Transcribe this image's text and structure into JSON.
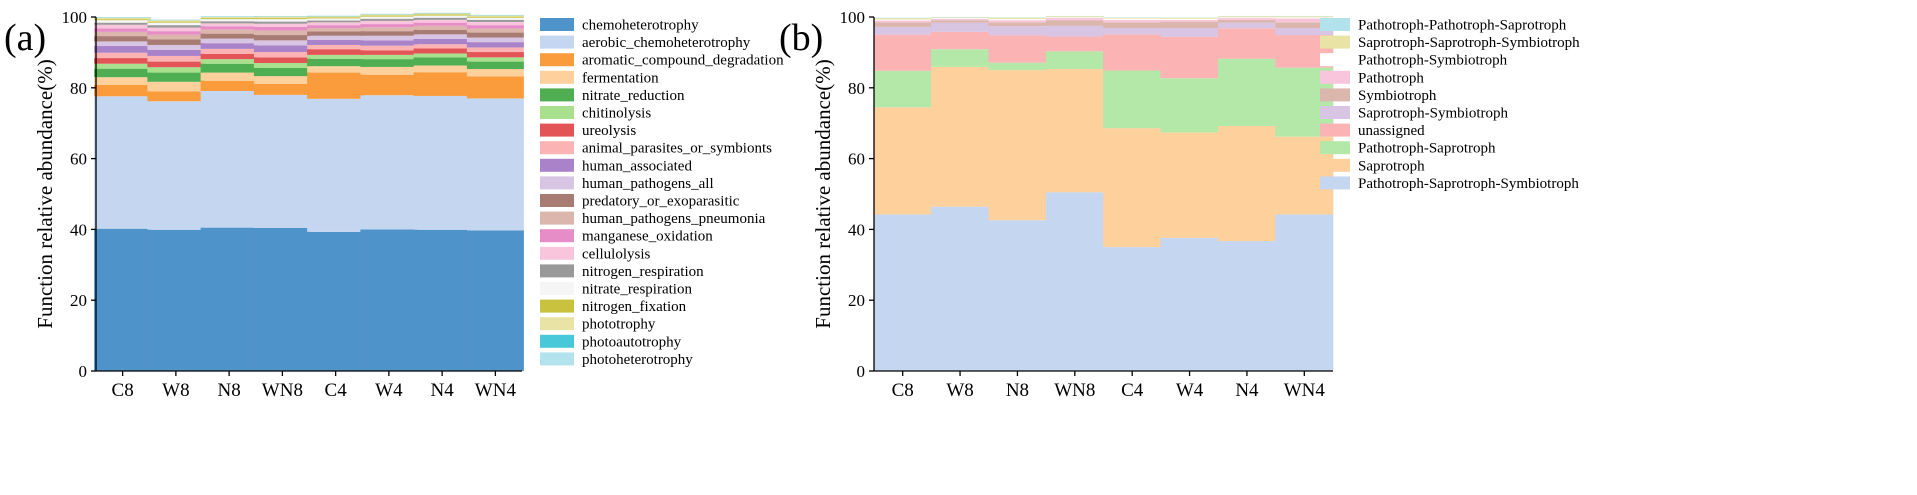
{
  "chart_data": [
    {
      "panel": "(a)",
      "type": "bar",
      "stacked": true,
      "ylabel": "Function relative abundance(%)",
      "ylim": [
        0,
        100
      ],
      "yticks": [
        0,
        20,
        40,
        60,
        80,
        100
      ],
      "categories": [
        "C8",
        "W8",
        "N8",
        "WN8",
        "C4",
        "W4",
        "N4",
        "WN4"
      ],
      "legend_position": "right",
      "series": [
        {
          "name": "chemoheterotrophy",
          "color": "#4e93c9",
          "values": [
            40.2,
            39.9,
            40.5,
            40.4,
            39.3,
            40.0,
            39.9,
            39.7
          ]
        },
        {
          "name": "aerobic_chemoheterotrophy",
          "color": "#c5d6f0",
          "values": [
            37.4,
            36.3,
            38.6,
            37.6,
            37.6,
            37.9,
            37.8,
            37.3
          ]
        },
        {
          "name": "aromatic_compound_degradation",
          "color": "#fa9c3c",
          "values": [
            3.2,
            2.8,
            2.9,
            3.1,
            7.4,
            5.8,
            6.7,
            6.2
          ]
        },
        {
          "name": "fermentation",
          "color": "#fdd09c",
          "values": [
            2.2,
            2.7,
            2.3,
            2.2,
            1.8,
            2.2,
            1.9,
            2.1
          ]
        },
        {
          "name": "nitrate_reduction",
          "color": "#4eae51",
          "values": [
            2.4,
            2.6,
            2.5,
            2.3,
            2.1,
            2.2,
            2.3,
            2.1
          ]
        },
        {
          "name": "chitinolysis",
          "color": "#a8e08e",
          "values": [
            1.4,
            1.5,
            1.3,
            1.4,
            1.1,
            1.2,
            1.1,
            1.2
          ]
        },
        {
          "name": "ureolysis",
          "color": "#e35457",
          "values": [
            1.6,
            1.6,
            1.5,
            1.6,
            1.6,
            1.3,
            1.4,
            1.5
          ]
        },
        {
          "name": "animal_parasites_or_symbionts",
          "color": "#fbb3b3",
          "values": [
            1.5,
            1.6,
            1.4,
            1.5,
            1.2,
            1.3,
            1.2,
            1.3
          ]
        },
        {
          "name": "human_associated",
          "color": "#a883c9",
          "values": [
            1.9,
            1.7,
            1.6,
            1.9,
            1.4,
            1.5,
            1.5,
            1.5
          ]
        },
        {
          "name": "human_pathogens_all",
          "color": "#d7c5e3",
          "values": [
            1.3,
            1.4,
            1.3,
            1.4,
            1.2,
            1.3,
            1.3,
            1.3
          ]
        },
        {
          "name": "predatory_or_exoparasitic",
          "color": "#a87c72",
          "values": [
            1.5,
            1.6,
            1.4,
            1.5,
            1.2,
            1.3,
            1.3,
            1.4
          ]
        },
        {
          "name": "human_pathogens_pneumonia",
          "color": "#dbb6ad",
          "values": [
            1.2,
            1.3,
            1.2,
            1.3,
            1.0,
            1.1,
            1.1,
            1.1
          ]
        },
        {
          "name": "manganese_oxidation",
          "color": "#e68cc7",
          "values": [
            1.0,
            1.0,
            0.9,
            1.0,
            0.8,
            0.9,
            0.9,
            1.0
          ]
        },
        {
          "name": "cellulolysis",
          "color": "#f9c5dc",
          "values": [
            1.0,
            1.0,
            0.8,
            0.9,
            0.8,
            0.9,
            0.8,
            0.9
          ]
        },
        {
          "name": "nitrogen_respiration",
          "color": "#999999",
          "values": [
            0.6,
            0.7,
            0.6,
            0.6,
            0.5,
            0.6,
            0.6,
            0.6
          ]
        },
        {
          "name": "nitrate_respiration",
          "color": "#f5f5f5",
          "values": [
            0.7,
            0.7,
            0.6,
            0.7,
            0.6,
            0.6,
            0.6,
            0.6
          ]
        },
        {
          "name": "nitrogen_fixation",
          "color": "#c9c23f",
          "values": [
            0.3,
            0.3,
            0.3,
            0.3,
            0.3,
            0.3,
            0.3,
            0.3
          ]
        },
        {
          "name": "phototrophy",
          "color": "#e9e3a6",
          "values": [
            0.4,
            0.4,
            0.3,
            0.4,
            0.3,
            0.3,
            0.3,
            0.3
          ]
        },
        {
          "name": "photoautotrophy",
          "color": "#48c8d8",
          "values": [
            0.1,
            0.1,
            0.1,
            0.1,
            0.1,
            0.1,
            0.1,
            0.1
          ]
        },
        {
          "name": "photoheterotrophy",
          "color": "#b2e3ed",
          "values": [
            0.1,
            0.1,
            0.1,
            0.1,
            0.1,
            0.1,
            0.1,
            0.1
          ]
        }
      ]
    },
    {
      "panel": "(b)",
      "type": "bar",
      "stacked": true,
      "ylabel": "Function relative abundance(%)",
      "ylim": [
        0,
        100
      ],
      "yticks": [
        0,
        20,
        40,
        60,
        80,
        100
      ],
      "categories": [
        "C8",
        "W8",
        "N8",
        "WN8",
        "C4",
        "W4",
        "N4",
        "WN4"
      ],
      "legend_position": "right",
      "series": [
        {
          "name": "Pathotroph-Saprotroph-Symbiotroph",
          "color": "#c5d6f0",
          "values": [
            44.2,
            46.4,
            42.6,
            50.5,
            35.0,
            37.6,
            36.7,
            44.2
          ]
        },
        {
          "name": "Saprotroph",
          "color": "#fdd09c",
          "values": [
            30.3,
            39.5,
            42.4,
            34.8,
            33.6,
            29.8,
            32.5,
            22.0
          ]
        },
        {
          "name": "Pathotroph-Saprotroph",
          "color": "#b3e8a9",
          "values": [
            10.3,
            5.0,
            2.1,
            5.0,
            16.3,
            15.3,
            19.0,
            19.5
          ]
        },
        {
          "name": "unassigned",
          "color": "#fbb3b3",
          "values": [
            10.2,
            4.9,
            7.7,
            4.2,
            10.2,
            11.7,
            8.6,
            9.2
          ]
        },
        {
          "name": "Saprotroph-Symbiotroph",
          "color": "#d7c5e3",
          "values": [
            2.2,
            2.6,
            2.6,
            3.0,
            1.8,
            2.5,
            1.6,
            2.0
          ]
        },
        {
          "name": "Symbiotroph",
          "color": "#dbb6ad",
          "values": [
            1.3,
            0.7,
            1.1,
            1.6,
            1.6,
            1.8,
            0.8,
            1.6
          ]
        },
        {
          "name": "Pathotroph",
          "color": "#f9c5dc",
          "values": [
            0.5,
            0.4,
            0.6,
            0.6,
            0.7,
            0.5,
            0.5,
            1.1
          ]
        },
        {
          "name": "Pathotroph-Symbiotroph",
          "color": "#ffffff",
          "values": [
            0.3,
            0.2,
            0.3,
            0.2,
            0.3,
            0.3,
            0.2,
            0.3
          ]
        },
        {
          "name": "Saprotroph-Saprotroph-Symbiotroph",
          "color": "#e9e3a6",
          "values": [
            0.4,
            0.2,
            0.4,
            0.3,
            0.3,
            0.3,
            0.3,
            0.3
          ]
        },
        {
          "name": "Pathotroph-Pathotroph-Saprotroph",
          "color": "#b2e3ed",
          "values": [
            0.1,
            0.1,
            0.1,
            0.1,
            0.1,
            0.1,
            0.1,
            0.1
          ]
        }
      ]
    }
  ]
}
